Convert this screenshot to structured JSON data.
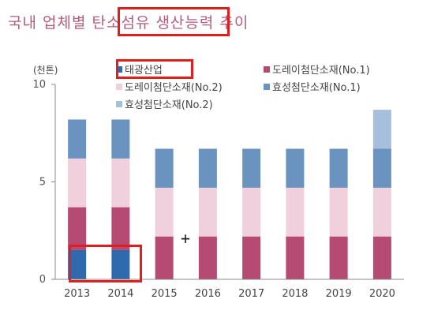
{
  "title": "국내 업체별 탄소섬유 생산능력 추이",
  "chart_data": {
    "type": "bar",
    "stacked": true,
    "unit": "(천톤)",
    "categories": [
      "2013",
      "2014",
      "2015",
      "2016",
      "2017",
      "2018",
      "2019",
      "2020"
    ],
    "ylim": [
      0,
      10
    ],
    "yticks": [
      0,
      5,
      10
    ],
    "grid": false,
    "legend_position": "top",
    "series": [
      {
        "name": "태광산업",
        "color": "#2e6aad",
        "values": [
          1.5,
          1.5,
          0,
          0,
          0,
          0,
          0,
          0
        ]
      },
      {
        "name": "도레이첨단소재(No.1)",
        "color": "#b54a72",
        "values": [
          2.2,
          2.2,
          2.2,
          2.2,
          2.2,
          2.2,
          2.2,
          2.2
        ]
      },
      {
        "name": "도레이첨단소재(No.2)",
        "color": "#f0d0dc",
        "values": [
          2.5,
          2.5,
          2.5,
          2.5,
          2.5,
          2.5,
          2.5,
          2.5
        ]
      },
      {
        "name": "효성첨단소재(No.1)",
        "color": "#6b93c0",
        "values": [
          2.0,
          2.0,
          2.0,
          2.0,
          2.0,
          2.0,
          2.0,
          2.0
        ]
      },
      {
        "name": "효성첨단소재(No.2)",
        "color": "#a6bfdc",
        "values": [
          0,
          0,
          0,
          0,
          0,
          0,
          0,
          2.0
        ]
      }
    ]
  }
}
